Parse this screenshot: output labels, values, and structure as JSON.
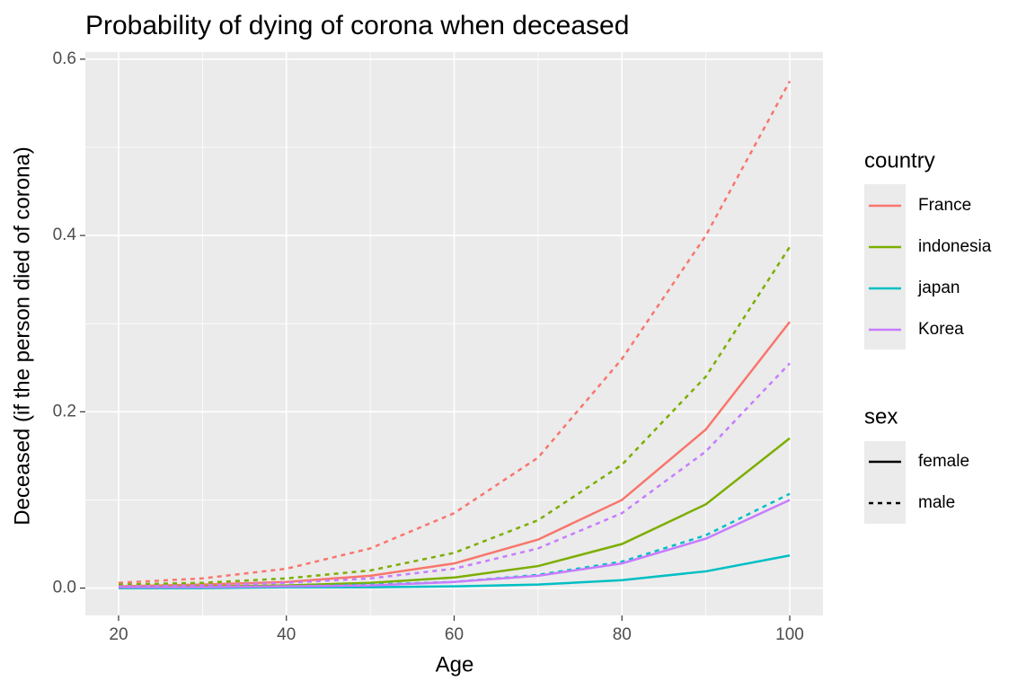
{
  "chart_data": {
    "type": "line",
    "title": "Probability of dying of corona when deceased",
    "x_label": "Age",
    "y_label": "Deceased (if the person died of corona)",
    "x": [
      20,
      30,
      40,
      50,
      60,
      70,
      80,
      90,
      100
    ],
    "xlim": [
      16.04,
      103.96
    ],
    "ylim": [
      -0.031,
      0.608
    ],
    "xticks": [
      20,
      40,
      60,
      80,
      100
    ],
    "yticks": [
      {
        "value": 0,
        "label": "0.0"
      },
      {
        "value": 0.2,
        "label": "0.2"
      },
      {
        "value": 0.4,
        "label": "0.4"
      },
      {
        "value": 0.6,
        "label": "0.6"
      }
    ],
    "x_minor_grid": [
      30,
      50,
      70,
      90
    ],
    "y_minor_grid": [
      0.1,
      0.3,
      0.5
    ],
    "grid": true,
    "legend": {
      "country": {
        "title": "country",
        "items": [
          {
            "name": "France",
            "color": "#F8766D"
          },
          {
            "name": "indonesia",
            "color": "#7CAE00"
          },
          {
            "name": "japan",
            "color": "#00BFC4"
          },
          {
            "name": "Korea",
            "color": "#C77CFF"
          }
        ]
      },
      "sex": {
        "title": "sex",
        "items": [
          {
            "name": "female",
            "linetype": "solid"
          },
          {
            "name": "male",
            "linetype": "dashed"
          }
        ]
      }
    },
    "series": [
      {
        "country": "France",
        "sex": "female",
        "values": [
          0.002,
          0.004,
          0.007,
          0.014,
          0.028,
          0.055,
          0.1,
          0.18,
          0.302
        ]
      },
      {
        "country": "France",
        "sex": "male",
        "values": [
          0.006,
          0.011,
          0.022,
          0.045,
          0.085,
          0.148,
          0.26,
          0.4,
          0.575
        ]
      },
      {
        "country": "indonesia",
        "sex": "female",
        "values": [
          0.001,
          0.002,
          0.003,
          0.006,
          0.012,
          0.025,
          0.05,
          0.095,
          0.17
        ]
      },
      {
        "country": "indonesia",
        "sex": "male",
        "values": [
          0.004,
          0.006,
          0.011,
          0.02,
          0.04,
          0.077,
          0.14,
          0.24,
          0.387
        ]
      },
      {
        "country": "japan",
        "sex": "female",
        "values": [
          0,
          0,
          0.001,
          0.001,
          0.002,
          0.004,
          0.009,
          0.019,
          0.037
        ]
      },
      {
        "country": "japan",
        "sex": "male",
        "values": [
          0.001,
          0.001,
          0.002,
          0.004,
          0.007,
          0.015,
          0.03,
          0.06,
          0.107
        ]
      },
      {
        "country": "Korea",
        "sex": "female",
        "values": [
          0.001,
          0.001,
          0.002,
          0.003,
          0.007,
          0.014,
          0.028,
          0.056,
          0.1
        ]
      },
      {
        "country": "Korea",
        "sex": "male",
        "values": [
          0.002,
          0.003,
          0.006,
          0.011,
          0.022,
          0.045,
          0.085,
          0.155,
          0.255
        ]
      }
    ]
  }
}
